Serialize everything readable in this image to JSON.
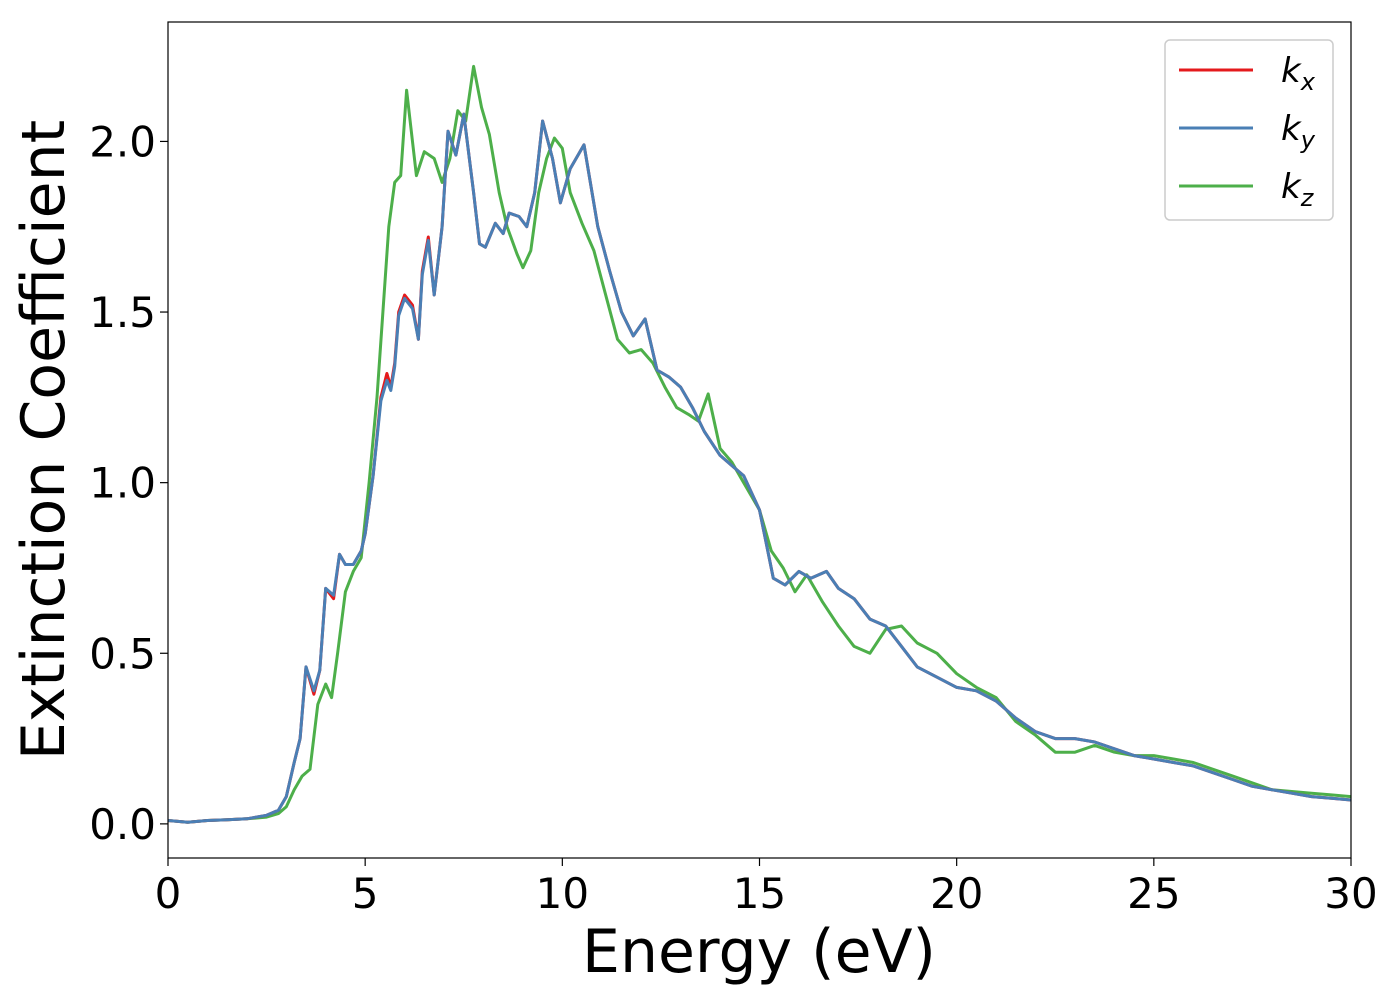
{
  "chart_data": {
    "type": "line",
    "title": "",
    "xlabel": "Energy (eV)",
    "ylabel": "Extinction Coefficient",
    "xlim": [
      0,
      30
    ],
    "ylim": [
      -0.1,
      2.35
    ],
    "xticks": [
      0,
      5,
      10,
      15,
      20,
      25,
      30
    ],
    "xtick_labels": [
      "0",
      "5",
      "10",
      "15",
      "20",
      "25",
      "30"
    ],
    "yticks": [
      0.0,
      0.5,
      1.0,
      1.5,
      2.0
    ],
    "ytick_labels": [
      "0.0",
      "0.5",
      "1.0",
      "1.5",
      "2.0"
    ],
    "grid": false,
    "legend_position": "top-right",
    "series": [
      {
        "name": "k_x",
        "legend_base": "k",
        "legend_sub": "x",
        "color": "#e41a1c",
        "x": [
          0,
          0.5,
          1,
          1.5,
          2,
          2.5,
          2.8,
          3.0,
          3.2,
          3.35,
          3.5,
          3.7,
          3.85,
          4.0,
          4.2,
          4.35,
          4.5,
          4.7,
          4.9,
          5.0,
          5.2,
          5.4,
          5.55,
          5.65,
          5.75,
          5.85,
          6.0,
          6.2,
          6.35,
          6.45,
          6.6,
          6.75,
          6.95,
          7.1,
          7.3,
          7.5,
          7.75,
          7.9,
          8.05,
          8.3,
          8.5,
          8.65,
          8.9,
          9.1,
          9.3,
          9.5,
          9.75,
          9.95,
          10.2,
          10.55,
          10.9,
          11.2,
          11.5,
          11.8,
          12.1,
          12.4,
          12.7,
          13.0,
          13.3,
          13.6,
          14.0,
          14.3,
          14.6,
          15.0,
          15.35,
          15.65,
          16.0,
          16.3,
          16.7,
          17.0,
          17.4,
          17.8,
          18.2,
          18.6,
          19.0,
          19.5,
          20.0,
          20.5,
          21.0,
          21.5,
          22.0,
          22.5,
          23.0,
          23.5,
          24.0,
          24.5,
          25.0,
          25.5,
          26.0,
          26.5,
          27.0,
          27.5,
          28.0,
          28.5,
          29.0,
          29.5,
          30.0
        ],
        "y": [
          0.01,
          0.005,
          0.01,
          0.012,
          0.015,
          0.025,
          0.04,
          0.08,
          0.18,
          0.25,
          0.46,
          0.38,
          0.45,
          0.69,
          0.66,
          0.79,
          0.76,
          0.76,
          0.8,
          0.85,
          1.02,
          1.25,
          1.32,
          1.28,
          1.35,
          1.5,
          1.55,
          1.52,
          1.42,
          1.62,
          1.72,
          1.55,
          1.75,
          2.03,
          1.96,
          2.08,
          1.85,
          1.7,
          1.69,
          1.76,
          1.73,
          1.79,
          1.78,
          1.75,
          1.85,
          2.06,
          1.95,
          1.82,
          1.92,
          1.99,
          1.75,
          1.62,
          1.5,
          1.43,
          1.48,
          1.33,
          1.31,
          1.28,
          1.22,
          1.15,
          1.08,
          1.05,
          1.02,
          0.92,
          0.72,
          0.7,
          0.74,
          0.72,
          0.74,
          0.69,
          0.66,
          0.6,
          0.58,
          0.52,
          0.46,
          0.43,
          0.4,
          0.39,
          0.36,
          0.31,
          0.27,
          0.25,
          0.25,
          0.24,
          0.22,
          0.2,
          0.19,
          0.18,
          0.17,
          0.15,
          0.13,
          0.11,
          0.1,
          0.09,
          0.08,
          0.075,
          0.07
        ]
      },
      {
        "name": "k_y",
        "legend_base": "k",
        "legend_sub": "y",
        "color": "#4a7fb5",
        "x": [
          0,
          0.5,
          1,
          1.5,
          2,
          2.5,
          2.8,
          3.0,
          3.2,
          3.35,
          3.5,
          3.7,
          3.85,
          4.0,
          4.2,
          4.35,
          4.5,
          4.7,
          4.9,
          5.0,
          5.2,
          5.4,
          5.55,
          5.65,
          5.75,
          5.85,
          6.0,
          6.2,
          6.35,
          6.45,
          6.6,
          6.75,
          6.95,
          7.1,
          7.3,
          7.5,
          7.75,
          7.9,
          8.05,
          8.3,
          8.5,
          8.65,
          8.9,
          9.1,
          9.3,
          9.5,
          9.75,
          9.95,
          10.2,
          10.55,
          10.9,
          11.2,
          11.5,
          11.8,
          12.1,
          12.4,
          12.7,
          13.0,
          13.3,
          13.6,
          14.0,
          14.3,
          14.6,
          15.0,
          15.35,
          15.65,
          16.0,
          16.3,
          16.7,
          17.0,
          17.4,
          17.8,
          18.2,
          18.6,
          19.0,
          19.5,
          20.0,
          20.5,
          21.0,
          21.5,
          22.0,
          22.5,
          23.0,
          23.5,
          24.0,
          24.5,
          25.0,
          25.5,
          26.0,
          26.5,
          27.0,
          27.5,
          28.0,
          28.5,
          29.0,
          29.5,
          30.0
        ],
        "y": [
          0.01,
          0.005,
          0.01,
          0.012,
          0.015,
          0.025,
          0.04,
          0.08,
          0.18,
          0.25,
          0.46,
          0.39,
          0.45,
          0.69,
          0.67,
          0.79,
          0.76,
          0.76,
          0.8,
          0.85,
          1.02,
          1.24,
          1.3,
          1.27,
          1.34,
          1.49,
          1.54,
          1.51,
          1.42,
          1.61,
          1.71,
          1.55,
          1.75,
          2.03,
          1.96,
          2.08,
          1.85,
          1.7,
          1.69,
          1.76,
          1.73,
          1.79,
          1.78,
          1.75,
          1.85,
          2.06,
          1.95,
          1.82,
          1.92,
          1.99,
          1.75,
          1.62,
          1.5,
          1.43,
          1.48,
          1.33,
          1.31,
          1.28,
          1.22,
          1.15,
          1.08,
          1.05,
          1.02,
          0.92,
          0.72,
          0.7,
          0.74,
          0.72,
          0.74,
          0.69,
          0.66,
          0.6,
          0.58,
          0.52,
          0.46,
          0.43,
          0.4,
          0.39,
          0.36,
          0.31,
          0.27,
          0.25,
          0.25,
          0.24,
          0.22,
          0.2,
          0.19,
          0.18,
          0.17,
          0.15,
          0.13,
          0.11,
          0.1,
          0.09,
          0.08,
          0.075,
          0.07
        ]
      },
      {
        "name": "k_z",
        "legend_base": "k",
        "legend_sub": "z",
        "color": "#4daf4a",
        "x": [
          0,
          0.5,
          1,
          1.5,
          2,
          2.5,
          2.8,
          3.0,
          3.2,
          3.4,
          3.6,
          3.8,
          4.0,
          4.15,
          4.3,
          4.5,
          4.7,
          4.9,
          5.1,
          5.3,
          5.45,
          5.6,
          5.75,
          5.9,
          6.05,
          6.3,
          6.5,
          6.75,
          6.95,
          7.15,
          7.35,
          7.55,
          7.75,
          7.95,
          8.15,
          8.4,
          8.6,
          8.85,
          9.0,
          9.2,
          9.4,
          9.6,
          9.8,
          10.0,
          10.2,
          10.5,
          10.8,
          11.1,
          11.4,
          11.7,
          12.0,
          12.3,
          12.6,
          12.9,
          13.2,
          13.45,
          13.7,
          14.0,
          14.3,
          14.6,
          15.0,
          15.3,
          15.6,
          15.9,
          16.2,
          16.6,
          17.0,
          17.4,
          17.8,
          18.2,
          18.6,
          19.0,
          19.5,
          20.0,
          20.5,
          21.0,
          21.5,
          22.0,
          22.5,
          23.0,
          23.5,
          24.0,
          24.5,
          25.0,
          25.5,
          26.0,
          26.5,
          27.0,
          27.5,
          28.0,
          28.5,
          29.0,
          29.5,
          30.0
        ],
        "y": [
          0.01,
          0.005,
          0.01,
          0.012,
          0.015,
          0.02,
          0.03,
          0.05,
          0.1,
          0.14,
          0.16,
          0.35,
          0.41,
          0.37,
          0.5,
          0.68,
          0.74,
          0.78,
          1.0,
          1.25,
          1.5,
          1.75,
          1.88,
          1.9,
          2.15,
          1.9,
          1.97,
          1.95,
          1.88,
          1.95,
          2.09,
          2.06,
          2.22,
          2.1,
          2.02,
          1.85,
          1.75,
          1.67,
          1.63,
          1.68,
          1.85,
          1.95,
          2.01,
          1.98,
          1.85,
          1.76,
          1.68,
          1.55,
          1.42,
          1.38,
          1.39,
          1.35,
          1.28,
          1.22,
          1.2,
          1.18,
          1.26,
          1.1,
          1.06,
          1.0,
          0.92,
          0.8,
          0.75,
          0.68,
          0.73,
          0.65,
          0.58,
          0.52,
          0.5,
          0.57,
          0.58,
          0.53,
          0.5,
          0.44,
          0.4,
          0.37,
          0.3,
          0.26,
          0.21,
          0.21,
          0.23,
          0.21,
          0.2,
          0.2,
          0.19,
          0.18,
          0.16,
          0.14,
          0.12,
          0.1,
          0.095,
          0.09,
          0.085,
          0.08
        ]
      }
    ]
  }
}
